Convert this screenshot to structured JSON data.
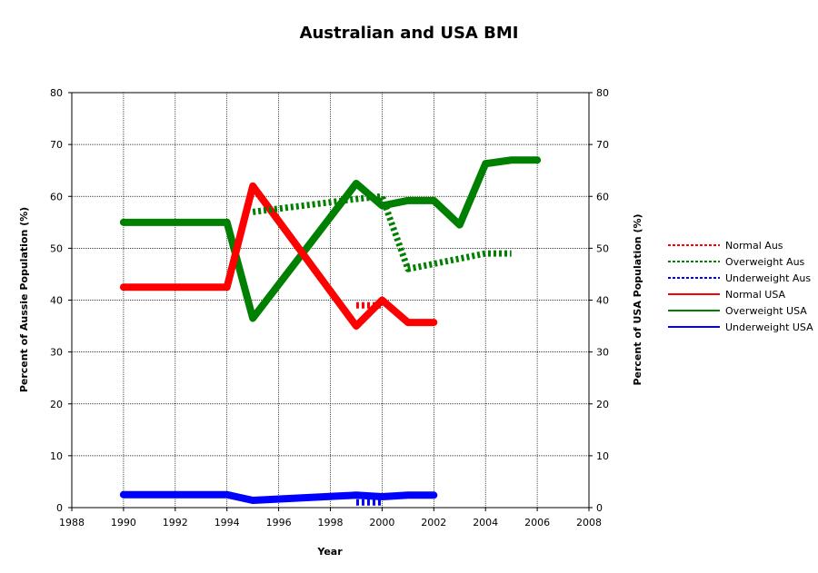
{
  "chart_data": {
    "type": "line",
    "title": "Australian and USA BMI",
    "xlabel": "Year",
    "ylabel_left": "Percent of Aussie Population (%)",
    "ylabel_right": "Percent of USA Population (%)",
    "xlim": [
      1988,
      2008
    ],
    "ylim": [
      0,
      80
    ],
    "x_ticks": [
      1988,
      1990,
      1992,
      1994,
      1996,
      1998,
      2000,
      2002,
      2004,
      2006,
      2008
    ],
    "y_ticks": [
      0,
      10,
      20,
      30,
      40,
      50,
      60,
      70,
      80
    ],
    "grid": true,
    "legend_position": "right",
    "series": [
      {
        "name": "Normal Aus",
        "color": "#ff0000",
        "style": "dotted",
        "x": [
          1999,
          2000
        ],
        "y": [
          39,
          39
        ]
      },
      {
        "name": "Overweight Aus",
        "color": "#008000",
        "style": "dotted",
        "x": [
          1995,
          1999,
          2000,
          2001,
          2004,
          2005
        ],
        "y": [
          57,
          59.5,
          60,
          46,
          49,
          49
        ]
      },
      {
        "name": "Underweight Aus",
        "color": "#0000ff",
        "style": "dotted",
        "x": [
          1999,
          2000
        ],
        "y": [
          1,
          1
        ]
      },
      {
        "name": "Normal USA",
        "color": "#ff0000",
        "style": "solid",
        "x": [
          1990,
          1994,
          1995,
          1999,
          2000,
          2001,
          2002
        ],
        "y": [
          42.5,
          42.5,
          62,
          35,
          40,
          35.7,
          35.7
        ]
      },
      {
        "name": "Overweight USA",
        "color": "#008000",
        "style": "solid",
        "x": [
          1990,
          1994,
          1995,
          1999,
          2000,
          2001,
          2002,
          2003,
          2004,
          2005,
          2006
        ],
        "y": [
          55,
          55,
          36.5,
          62.5,
          58.2,
          59.2,
          59.2,
          54.5,
          66.3,
          67,
          67
        ]
      },
      {
        "name": "Underweight USA",
        "color": "#0000ff",
        "style": "solid",
        "x": [
          1990,
          1994,
          1995,
          1999,
          2000,
          2001,
          2002
        ],
        "y": [
          2.5,
          2.5,
          1.4,
          2.4,
          2.1,
          2.4,
          2.4
        ]
      }
    ]
  }
}
